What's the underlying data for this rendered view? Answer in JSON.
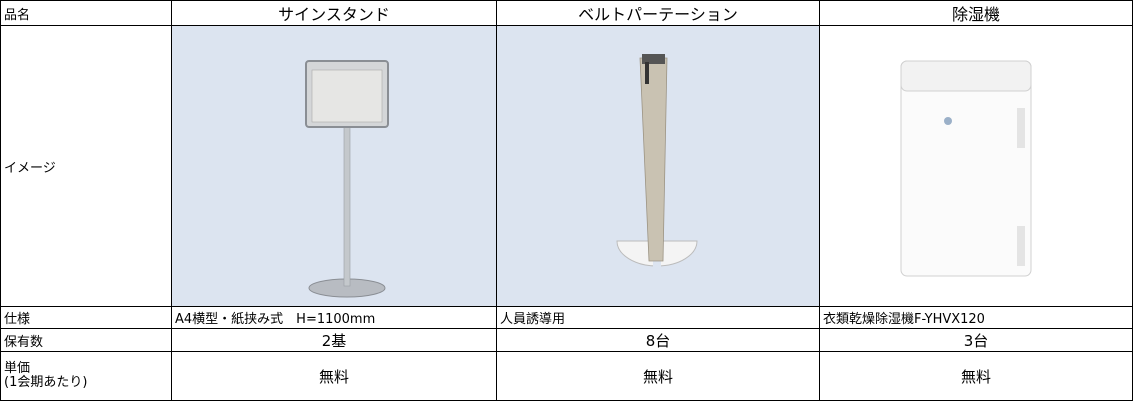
{
  "header": [
    "品名",
    "サインスタンド",
    "ベルトパーテーション",
    "除湿機"
  ],
  "image_row": {
    "label": "イメージ"
  },
  "spec_row": {
    "label": "仕様",
    "cells": [
      "A4横型・紙挟み式　H=1100mm",
      "人員誘導用",
      "衣類乾燥除湿機F-YHVX120"
    ]
  },
  "count_row": {
    "label": "保有数",
    "cells": [
      "2基",
      "8台",
      "3台"
    ]
  },
  "price_row": {
    "label": "単価",
    "sublabel": "(1会期あたり)",
    "cells": [
      "無料",
      "無料",
      "無料"
    ]
  }
}
